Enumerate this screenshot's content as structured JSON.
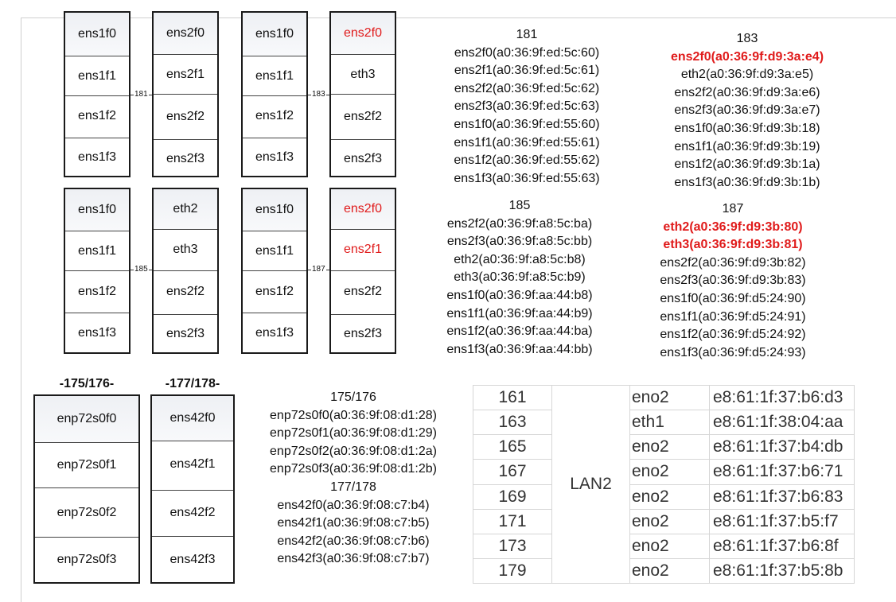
{
  "cards_top": [
    {
      "ports": [
        "ens1f0",
        "ens1f1",
        "ens1f2",
        "ens1f3"
      ],
      "red": [
        false,
        false,
        false,
        false
      ]
    },
    {
      "ports": [
        "ens2f0",
        "ens2f1",
        "ens2f2",
        "ens2f3"
      ],
      "red": [
        false,
        false,
        false,
        false
      ]
    },
    {
      "ports": [
        "ens1f0",
        "ens1f1",
        "ens1f2",
        "ens1f3"
      ],
      "red": [
        false,
        false,
        false,
        false
      ]
    },
    {
      "ports": [
        "ens2f0",
        "eth3",
        "ens2f2",
        "ens2f3"
      ],
      "red": [
        true,
        false,
        false,
        false
      ]
    }
  ],
  "cards_mid": [
    {
      "ports": [
        "ens1f0",
        "ens1f1",
        "ens1f2",
        "ens1f3"
      ],
      "red": [
        false,
        false,
        false,
        false
      ]
    },
    {
      "ports": [
        "eth2",
        "eth3",
        "ens2f2",
        "ens2f3"
      ],
      "red": [
        false,
        false,
        false,
        false
      ]
    },
    {
      "ports": [
        "ens1f0",
        "ens1f1",
        "ens1f2",
        "ens1f3"
      ],
      "red": [
        false,
        false,
        false,
        false
      ]
    },
    {
      "ports": [
        "ens2f0",
        "ens2f1",
        "ens2f2",
        "ens2f3"
      ],
      "red": [
        true,
        true,
        false,
        false
      ]
    }
  ],
  "connectors": [
    "181",
    "183",
    "185",
    "187"
  ],
  "group_labels": [
    "-175/176-",
    "-177/178-"
  ],
  "cards_bottom": [
    {
      "ports": [
        "enp72s0f0",
        "enp72s0f1",
        "enp72s0f2",
        "enp72s0f3"
      ]
    },
    {
      "ports": [
        "ens42f0",
        "ens42f1",
        "ens42f2",
        "ens42f3"
      ]
    }
  ],
  "mac_181": {
    "title": "181",
    "lines": [
      "ens2f0(a0:36:9f:ed:5c:60)",
      "ens2f1(a0:36:9f:ed:5c:61)",
      "ens2f2(a0:36:9f:ed:5c:62)",
      "ens2f3(a0:36:9f:ed:5c:63)",
      "ens1f0(a0:36:9f:ed:55:60)",
      "ens1f1(a0:36:9f:ed:55:61)",
      "ens1f2(a0:36:9f:ed:55:62)",
      "ens1f3(a0:36:9f:ed:55:63)"
    ],
    "highlight": [
      false,
      false,
      false,
      false,
      false,
      false,
      false,
      false
    ]
  },
  "mac_183": {
    "title": "183",
    "lines": [
      "ens2f0(a0:36:9f:d9:3a:e4)",
      "eth2(a0:36:9f:d9:3a:e5)",
      "ens2f2(a0:36:9f:d9:3a:e6)",
      "ens2f3(a0:36:9f:d9:3a:e7)",
      "ens1f0(a0:36:9f:d9:3b:18)",
      "ens1f1(a0:36:9f:d9:3b:19)",
      "ens1f2(a0:36:9f:d9:3b:1a)",
      "ens1f3(a0:36:9f:d9:3b:1b)"
    ],
    "highlight": [
      true,
      false,
      false,
      false,
      false,
      false,
      false,
      false
    ]
  },
  "mac_185": {
    "title": "185",
    "lines": [
      "ens2f2(a0:36:9f:a8:5c:ba)",
      "ens2f3(a0:36:9f:a8:5c:bb)",
      "eth2(a0:36:9f:a8:5c:b8)",
      "eth3(a0:36:9f:a8:5c:b9)",
      "ens1f0(a0:36:9f:aa:44:b8)",
      "ens1f1(a0:36:9f:aa:44:b9)",
      "ens1f2(a0:36:9f:aa:44:ba)",
      "ens1f3(a0:36:9f:aa:44:bb)"
    ],
    "highlight": [
      false,
      false,
      false,
      false,
      false,
      false,
      false,
      false
    ]
  },
  "mac_187": {
    "title": "187",
    "lines": [
      "eth2(a0:36:9f:d9:3b:80)",
      "eth3(a0:36:9f:d9:3b:81)",
      "ens2f2(a0:36:9f:d9:3b:82)",
      "ens2f3(a0:36:9f:d9:3b:83)",
      "ens1f0(a0:36:9f:d5:24:90)",
      "ens1f1(a0:36:9f:d5:24:91)",
      "ens1f2(a0:36:9f:d5:24:92)",
      "ens1f3(a0:36:9f:d5:24:93)"
    ],
    "highlight": [
      true,
      true,
      false,
      false,
      false,
      false,
      false,
      false
    ]
  },
  "mac_175": {
    "title": "175/176",
    "lines": [
      "enp72s0f0(a0:36:9f:08:d1:28)",
      "enp72s0f1(a0:36:9f:08:d1:29)",
      "enp72s0f2(a0:36:9f:08:d1:2a)",
      "enp72s0f3(a0:36:9f:08:d1:2b)"
    ]
  },
  "mac_177": {
    "title": "177/178",
    "lines": [
      "ens42f0(a0:36:9f:08:c7:b4)",
      "ens42f1(a0:36:9f:08:c7:b5)",
      "ens42f2(a0:36:9f:08:c7:b6)",
      "ens42f3(a0:36:9f:08:c7:b7)"
    ]
  },
  "lan_table": {
    "lan_label": "LAN2",
    "rows": [
      {
        "host": "161",
        "iface": "eno2",
        "mac": "e8:61:1f:37:b6:d3"
      },
      {
        "host": "163",
        "iface": "eth1",
        "mac": "e8:61:1f:38:04:aa"
      },
      {
        "host": "165",
        "iface": "eno2",
        "mac": "e8:61:1f:37:b4:db"
      },
      {
        "host": "167",
        "iface": "eno2",
        "mac": "e8:61:1f:37:b6:71"
      },
      {
        "host": "169",
        "iface": "eno2",
        "mac": "e8:61:1f:37:b6:83"
      },
      {
        "host": "171",
        "iface": "eno2",
        "mac": "e8:61:1f:37:b5:f7"
      },
      {
        "host": "173",
        "iface": "eno2",
        "mac": "e8:61:1f:37:b6:8f"
      },
      {
        "host": "179",
        "iface": "eno2",
        "mac": "e8:61:1f:37:b5:8b"
      }
    ]
  },
  "colors": {
    "highlight": "#e01b1b",
    "border": "#1a1a1a"
  }
}
